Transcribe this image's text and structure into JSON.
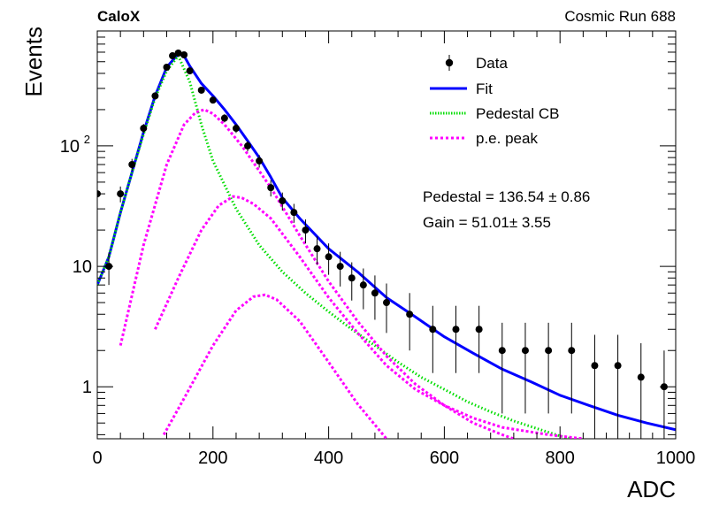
{
  "header": {
    "experiment": "CaloX",
    "run": "Cosmic Run 688"
  },
  "fit_results": {
    "pedestal": "Pedestal = 136.54 ± 0.86",
    "gain": "Gain = 51.01± 3.55"
  },
  "chart_data": {
    "type": "scatter",
    "title": "",
    "xlabel": "ADC",
    "ylabel": "Events",
    "xlim": [
      0,
      1000
    ],
    "ylim": [
      0.37,
      900
    ],
    "yscale": "log",
    "xticks": [
      0,
      200,
      400,
      600,
      800,
      1000
    ],
    "xtick_labels": [
      "0",
      "200",
      "400",
      "600",
      "800",
      "1000"
    ],
    "ytick_labels": [
      {
        "value": 1,
        "label": "1"
      },
      {
        "value": 10,
        "label": "10"
      },
      {
        "value": 100,
        "label": "10",
        "exponent": "2"
      }
    ],
    "grid": false,
    "legend_position": "top-right",
    "legend": [
      {
        "label": "Data",
        "style": "marker",
        "color": "#000000"
      },
      {
        "label": "Fit",
        "style": "solid",
        "color": "#0000ff"
      },
      {
        "label": "Pedestal CB",
        "style": "dotted",
        "color": "#00dd00"
      },
      {
        "label": "p.e. peak",
        "style": "dashed",
        "color": "#ff00ff"
      }
    ],
    "data_points": {
      "x": [
        0,
        20,
        40,
        60,
        80,
        100,
        120,
        130,
        140,
        150,
        160,
        180,
        200,
        220,
        240,
        260,
        280,
        300,
        320,
        340,
        360,
        380,
        400,
        420,
        440,
        460,
        480,
        500,
        540,
        580,
        620,
        660,
        700,
        740,
        780,
        820,
        860,
        900,
        940,
        980
      ],
      "y": [
        40,
        10,
        40,
        70,
        140,
        260,
        450,
        560,
        590,
        570,
        420,
        290,
        240,
        170,
        140,
        100,
        75,
        45,
        35,
        28,
        20,
        14,
        12,
        10,
        8,
        7,
        6,
        5,
        4,
        3,
        3,
        3,
        2,
        2,
        2,
        2,
        1.5,
        1.5,
        1.2,
        1
      ],
      "yerr": [
        6,
        3,
        6,
        8,
        12,
        16,
        21,
        24,
        24,
        24,
        20,
        17,
        15,
        13,
        12,
        10,
        9,
        7,
        6,
        5,
        4.5,
        3.7,
        3.5,
        3.2,
        2.8,
        2.6,
        2.4,
        2.2,
        2,
        1.7,
        1.7,
        1.7,
        1.4,
        1.4,
        1.4,
        1.4,
        1.2,
        1.2,
        1.1,
        1
      ]
    },
    "series": [
      {
        "name": "Fit",
        "color": "#0000ff",
        "x": [
          0,
          20,
          40,
          60,
          80,
          100,
          120,
          140,
          150,
          160,
          180,
          200,
          220,
          240,
          260,
          280,
          300,
          320,
          350,
          400,
          450,
          500,
          550,
          600,
          650,
          700,
          750,
          800,
          850,
          900,
          950,
          1000
        ],
        "y": [
          7,
          12,
          28,
          60,
          130,
          260,
          450,
          580,
          560,
          460,
          330,
          260,
          200,
          150,
          110,
          80,
          55,
          37,
          25,
          14,
          9,
          5.5,
          3.8,
          2.6,
          1.9,
          1.4,
          1.1,
          0.85,
          0.7,
          0.58,
          0.5,
          0.44
        ]
      },
      {
        "name": "Pedestal CB",
        "color": "#00dd00",
        "x": [
          0,
          20,
          40,
          60,
          80,
          100,
          120,
          140,
          160,
          180,
          200,
          240,
          280,
          320,
          360,
          400,
          440,
          480,
          520,
          560,
          600,
          640,
          680,
          720,
          760,
          800,
          820
        ],
        "y": [
          7,
          12,
          28,
          60,
          125,
          250,
          420,
          560,
          340,
          150,
          75,
          30,
          15,
          9,
          6,
          4.2,
          3,
          2.2,
          1.6,
          1.2,
          0.95,
          0.75,
          0.62,
          0.52,
          0.45,
          0.39,
          0.37
        ]
      },
      {
        "name": "p.e. peak",
        "color": "#ff00ff",
        "x": [
          40,
          80,
          120,
          150,
          170,
          185,
          200,
          220,
          250,
          300,
          350,
          400,
          450,
          500,
          550,
          600,
          650,
          700,
          720
        ],
        "y": [
          2.2,
          15,
          70,
          150,
          190,
          200,
          185,
          150,
          100,
          45,
          18,
          7.5,
          3.5,
          1.8,
          1.05,
          0.7,
          0.5,
          0.4,
          0.37
        ]
      },
      {
        "name": "p.e. peak",
        "color": "#ff00ff",
        "x": [
          100,
          140,
          180,
          210,
          235,
          250,
          270,
          300,
          350,
          400,
          450,
          500,
          550,
          600,
          650,
          700,
          780,
          840
        ],
        "y": [
          3,
          8,
          20,
          32,
          38,
          37,
          33,
          25,
          12,
          5.5,
          2.8,
          1.5,
          0.95,
          0.7,
          0.55,
          0.46,
          0.4,
          0.37
        ]
      },
      {
        "name": "p.e. peak",
        "color": "#ff00ff",
        "x": [
          115,
          150,
          200,
          240,
          270,
          290,
          310,
          350,
          400,
          450,
          500
        ],
        "y": [
          0.4,
          0.8,
          2.2,
          4.3,
          5.6,
          5.8,
          5.3,
          3.5,
          1.6,
          0.72,
          0.37
        ]
      }
    ]
  }
}
